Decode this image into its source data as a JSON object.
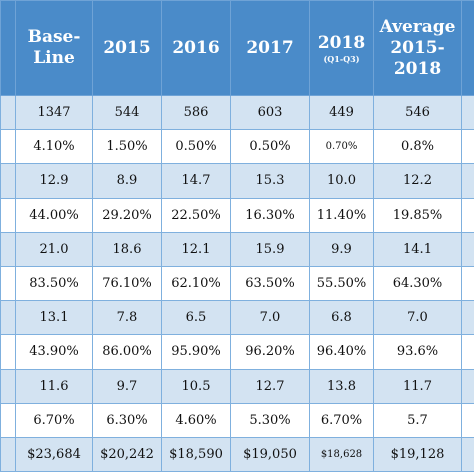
{
  "table": {
    "header": {
      "baseline": "Base-Line",
      "y2015": "2015",
      "y2016": "2016",
      "y2017": "2017",
      "y2018": "2018",
      "y2018_note": "(Q1-Q3)",
      "average": "Average 2015-2018"
    },
    "rows": [
      [
        "1347",
        "544",
        "586",
        "603",
        "449",
        "546"
      ],
      [
        "4.10%",
        "1.50%",
        "0.50%",
        "0.50%",
        "0.70%",
        "0.8%"
      ],
      [
        "12.9",
        "8.9",
        "14.7",
        "15.3",
        "10.0",
        "12.2"
      ],
      [
        "44.00%",
        "29.20%",
        "22.50%",
        "16.30%",
        "11.40%",
        "19.85%"
      ],
      [
        "21.0",
        "18.6",
        "12.1",
        "15.9",
        "9.9",
        "14.1"
      ],
      [
        "83.50%",
        "76.10%",
        "62.10%",
        "63.50%",
        "55.50%",
        "64.30%"
      ],
      [
        "13.1",
        "7.8",
        "6.5",
        "7.0",
        "6.8",
        "7.0"
      ],
      [
        "43.90%",
        "86.00%",
        "95.90%",
        "96.20%",
        "96.40%",
        "93.6%"
      ],
      [
        "11.6",
        "9.7",
        "10.5",
        "12.7",
        "13.8",
        "11.7"
      ],
      [
        "6.70%",
        "6.30%",
        "4.60%",
        "5.30%",
        "6.70%",
        "5.7"
      ],
      [
        "$23,684",
        "$20,242",
        "$18,590",
        "$19,050",
        "$18,628",
        "$19,128"
      ]
    ]
  },
  "colors": {
    "header_bg": "#4a8bc9",
    "row_tint": "#d3e3f2",
    "border": "#7fb0de"
  }
}
